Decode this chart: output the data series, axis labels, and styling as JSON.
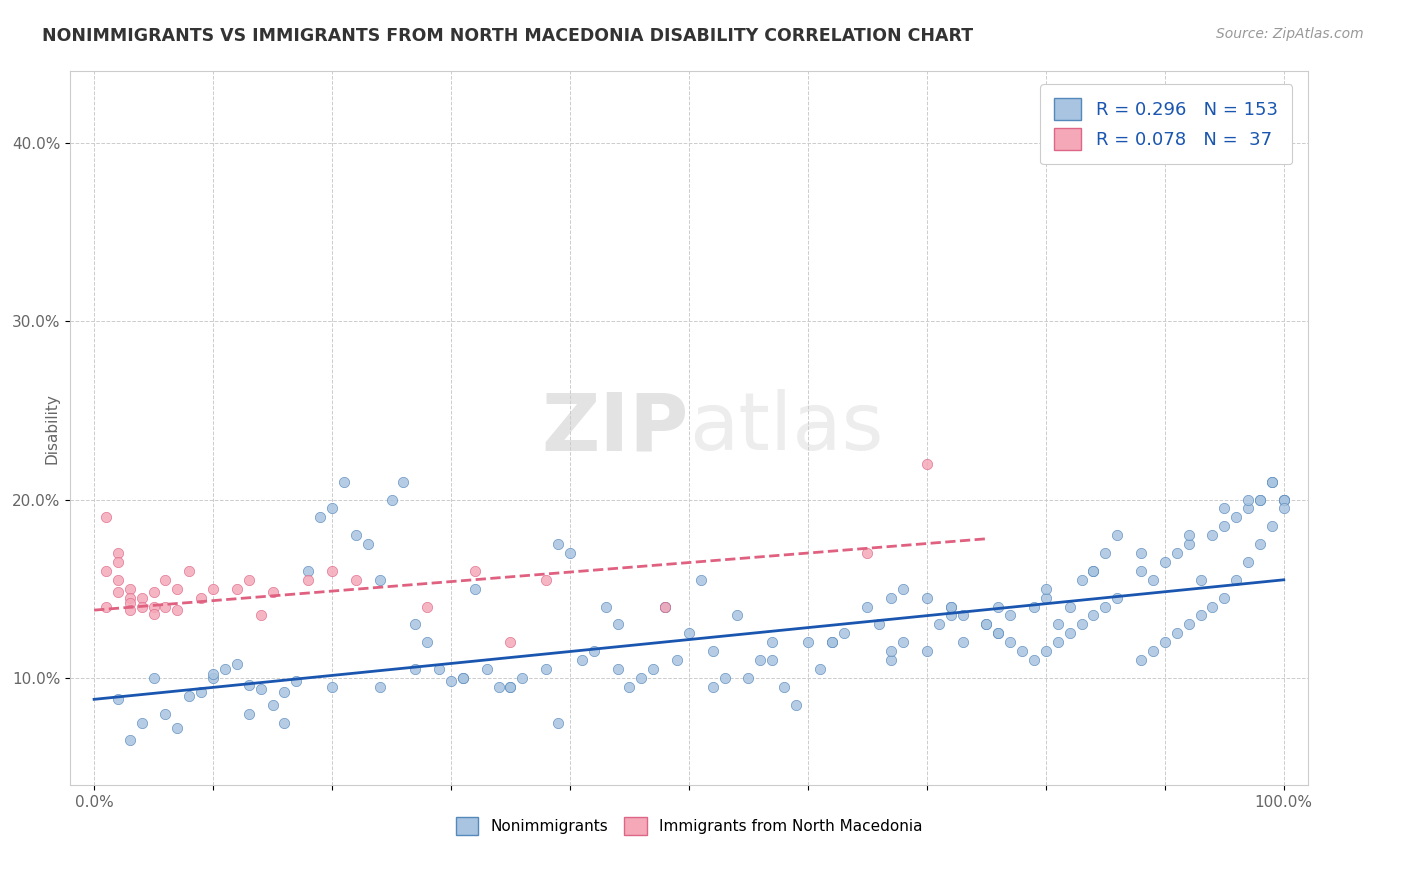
{
  "title": "NONIMMIGRANTS VS IMMIGRANTS FROM NORTH MACEDONIA DISABILITY CORRELATION CHART",
  "source": "Source: ZipAtlas.com",
  "ylabel": "Disability",
  "xlim": [
    -0.02,
    1.02
  ],
  "ylim": [
    0.04,
    0.44
  ],
  "yticks": [
    0.1,
    0.2,
    0.3,
    0.4
  ],
  "ytick_labels": [
    "10.0%",
    "20.0%",
    "30.0%",
    "40.0%"
  ],
  "xticks": [
    0.0,
    0.1,
    0.2,
    0.3,
    0.4,
    0.5,
    0.6,
    0.7,
    0.8,
    0.9,
    1.0
  ],
  "xtick_labels": [
    "0.0%",
    "",
    "",
    "",
    "",
    "",
    "",
    "",
    "",
    "",
    "100.0%"
  ],
  "nonimm_color": "#a8c4e0",
  "imm_color": "#f4a8b8",
  "nonimm_edge_color": "#5588bb",
  "imm_edge_color": "#dd6688",
  "nonimm_line_color": "#1a56b0",
  "imm_line_color": "#e06080",
  "watermark_zip": "ZIP",
  "watermark_atlas": "atlas",
  "nonimm_scatter_x": [
    0.02,
    0.05,
    0.08,
    0.09,
    0.1,
    0.11,
    0.12,
    0.13,
    0.14,
    0.15,
    0.16,
    0.17,
    0.18,
    0.19,
    0.2,
    0.21,
    0.22,
    0.23,
    0.24,
    0.25,
    0.26,
    0.27,
    0.28,
    0.29,
    0.3,
    0.31,
    0.32,
    0.33,
    0.34,
    0.35,
    0.36,
    0.38,
    0.39,
    0.4,
    0.41,
    0.42,
    0.43,
    0.44,
    0.45,
    0.46,
    0.47,
    0.48,
    0.49,
    0.5,
    0.51,
    0.52,
    0.53,
    0.54,
    0.55,
    0.56,
    0.57,
    0.58,
    0.59,
    0.6,
    0.61,
    0.62,
    0.63,
    0.65,
    0.66,
    0.67,
    0.68,
    0.7,
    0.71,
    0.72,
    0.73,
    0.75,
    0.76,
    0.77,
    0.79,
    0.8,
    0.81,
    0.82,
    0.83,
    0.84,
    0.85,
    0.86,
    0.88,
    0.89,
    0.9,
    0.91,
    0.92,
    0.93,
    0.94,
    0.95,
    0.96,
    0.97,
    0.98,
    0.99,
    1.0,
    0.03,
    0.04,
    0.06,
    0.07,
    0.1,
    0.13,
    0.16,
    0.2,
    0.24,
    0.27,
    0.31,
    0.35,
    0.39,
    0.44,
    0.48,
    0.52,
    0.57,
    0.62,
    0.67,
    0.72,
    0.76,
    0.8,
    0.84,
    0.88,
    0.92,
    0.95,
    0.97,
    0.98,
    0.99,
    1.0,
    1.0,
    1.0,
    0.99,
    0.98,
    0.97,
    0.96,
    0.95,
    0.94,
    0.93,
    0.92,
    0.91,
    0.9,
    0.89,
    0.88,
    0.86,
    0.85,
    0.84,
    0.83,
    0.82,
    0.81,
    0.8,
    0.79,
    0.78,
    0.77,
    0.76,
    0.75,
    0.73,
    0.72,
    0.7,
    0.68,
    0.67
  ],
  "nonimm_scatter_y": [
    0.088,
    0.1,
    0.09,
    0.092,
    0.1,
    0.105,
    0.108,
    0.096,
    0.094,
    0.085,
    0.092,
    0.098,
    0.16,
    0.19,
    0.195,
    0.21,
    0.18,
    0.175,
    0.155,
    0.2,
    0.21,
    0.13,
    0.12,
    0.105,
    0.098,
    0.1,
    0.15,
    0.105,
    0.095,
    0.095,
    0.1,
    0.105,
    0.175,
    0.17,
    0.11,
    0.115,
    0.14,
    0.13,
    0.095,
    0.1,
    0.105,
    0.14,
    0.11,
    0.125,
    0.155,
    0.115,
    0.1,
    0.135,
    0.1,
    0.11,
    0.12,
    0.095,
    0.085,
    0.12,
    0.105,
    0.12,
    0.125,
    0.14,
    0.13,
    0.11,
    0.12,
    0.115,
    0.13,
    0.14,
    0.12,
    0.13,
    0.125,
    0.135,
    0.14,
    0.145,
    0.13,
    0.14,
    0.155,
    0.16,
    0.17,
    0.18,
    0.16,
    0.155,
    0.165,
    0.17,
    0.175,
    0.155,
    0.18,
    0.185,
    0.19,
    0.195,
    0.2,
    0.21,
    0.2,
    0.065,
    0.075,
    0.08,
    0.072,
    0.102,
    0.08,
    0.075,
    0.095,
    0.095,
    0.105,
    0.1,
    0.095,
    0.075,
    0.105,
    0.14,
    0.095,
    0.11,
    0.12,
    0.115,
    0.135,
    0.14,
    0.15,
    0.16,
    0.17,
    0.18,
    0.195,
    0.2,
    0.2,
    0.21,
    0.2,
    0.2,
    0.195,
    0.185,
    0.175,
    0.165,
    0.155,
    0.145,
    0.14,
    0.135,
    0.13,
    0.125,
    0.12,
    0.115,
    0.11,
    0.145,
    0.14,
    0.135,
    0.13,
    0.125,
    0.12,
    0.115,
    0.11,
    0.115,
    0.12,
    0.125,
    0.13,
    0.135,
    0.14,
    0.145,
    0.15,
    0.145
  ],
  "imm_scatter_x": [
    0.01,
    0.01,
    0.01,
    0.02,
    0.02,
    0.02,
    0.02,
    0.03,
    0.03,
    0.03,
    0.03,
    0.04,
    0.04,
    0.05,
    0.05,
    0.05,
    0.06,
    0.06,
    0.07,
    0.07,
    0.08,
    0.09,
    0.1,
    0.12,
    0.13,
    0.14,
    0.15,
    0.18,
    0.2,
    0.22,
    0.28,
    0.32,
    0.35,
    0.38,
    0.48,
    0.65,
    0.7
  ],
  "imm_scatter_y": [
    0.19,
    0.16,
    0.14,
    0.17,
    0.165,
    0.155,
    0.148,
    0.15,
    0.145,
    0.142,
    0.138,
    0.145,
    0.14,
    0.148,
    0.14,
    0.136,
    0.155,
    0.14,
    0.15,
    0.138,
    0.16,
    0.145,
    0.15,
    0.15,
    0.155,
    0.135,
    0.148,
    0.155,
    0.16,
    0.155,
    0.14,
    0.16,
    0.12,
    0.155,
    0.14,
    0.17,
    0.22
  ],
  "nonimm_trendline_x": [
    0.0,
    1.0
  ],
  "nonimm_trendline_y": [
    0.088,
    0.155
  ],
  "imm_trendline_x": [
    0.0,
    0.75
  ],
  "imm_trendline_y": [
    0.138,
    0.178
  ]
}
